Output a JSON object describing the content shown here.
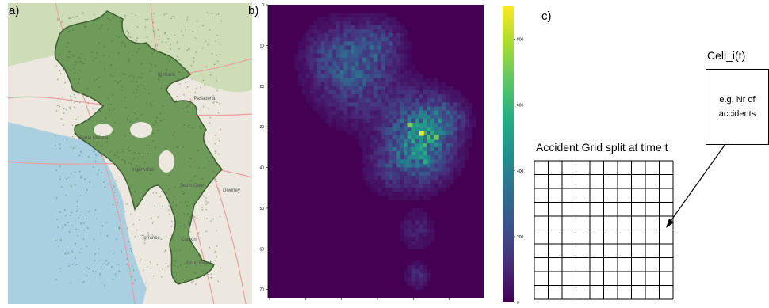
{
  "panels": {
    "a": {
      "label": "a)"
    },
    "b": {
      "label": "b)"
    },
    "c": {
      "label": "c)"
    }
  },
  "map": {
    "place_labels": [
      "Santa Monica",
      "Inglewood",
      "South Gate",
      "Downey",
      "Torrance",
      "Carson",
      "Long Beach",
      "Pasadena",
      "Burbank"
    ],
    "colors": {
      "ocean": "#a9cfe0",
      "land": "#ece8df",
      "parks": "#cfdcb8",
      "region": "#6e9a5a",
      "region_edge": "#3f5f33",
      "roads": "#e8a0a0"
    }
  },
  "chart_data": {
    "type": "heatmap",
    "title": "",
    "xlabel": "",
    "ylabel": "",
    "y_ticks": [
      0,
      10,
      20,
      30,
      40,
      50,
      60,
      70
    ],
    "ylim": [
      0,
      72
    ],
    "xlim": [
      0,
      57
    ],
    "colorbar": {
      "ticks": [
        0,
        200,
        400,
        600,
        800
      ],
      "range": [
        0,
        900
      ],
      "colormap": "viridis"
    },
    "hotspots": [
      {
        "row": 31,
        "col": 40,
        "value": 900
      },
      {
        "row": 29,
        "col": 37,
        "value": 720
      },
      {
        "row": 32,
        "col": 44,
        "value": 700
      },
      {
        "row": 38,
        "col": 41,
        "value": 560
      },
      {
        "row": 35,
        "col": 38,
        "value": 450
      },
      {
        "row": 16,
        "col": 24,
        "value": 300
      }
    ]
  },
  "diagram": {
    "grid_title": "Accident Grid split at time t",
    "cell_title": "Cell_i(t)",
    "cell_text_line1": "e.g. Nr of",
    "cell_text_line2": "accidents",
    "grid_rows": 10,
    "grid_cols": 10
  }
}
